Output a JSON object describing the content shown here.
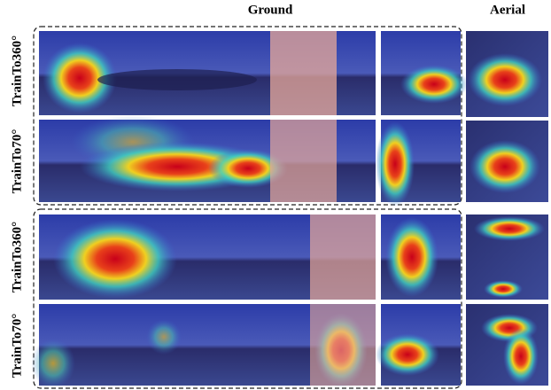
{
  "header": {
    "ground": "Ground",
    "aerial": "Aerial"
  },
  "rows": [
    {
      "label": "TrainTo360°"
    },
    {
      "label": "TrainTo70°"
    },
    {
      "label": "TrainTo360°"
    },
    {
      "label": "TrainTo70°"
    }
  ]
}
